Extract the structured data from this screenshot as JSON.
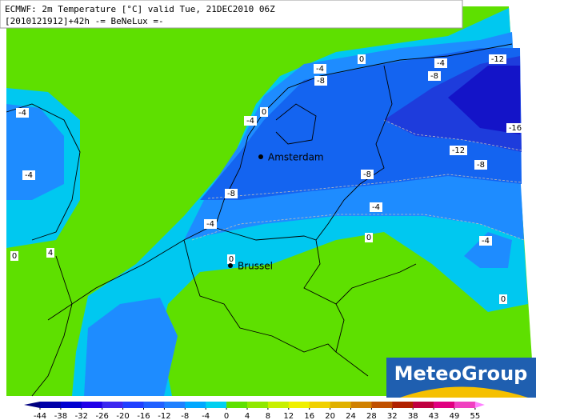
{
  "header": {
    "line1": "ECMWF: 2m Temperature [°C] valid Tue, 21DEC2010 06Z",
    "line2": "[2010121912]+42h -= BeNeLux =-"
  },
  "map": {
    "contour_labels": [
      -4,
      0,
      -8,
      -4,
      -8,
      -12,
      0,
      -4,
      -4,
      -16,
      -12,
      -8,
      -4,
      -8,
      -8,
      -4,
      -4,
      0,
      -4,
      4,
      0,
      0,
      0
    ],
    "cities": [
      {
        "name": "Amsterdam"
      },
      {
        "name": "Brussel"
      }
    ]
  },
  "legend": {
    "ticks": [
      -44,
      -38,
      -32,
      -26,
      -20,
      -16,
      -12,
      -8,
      -4,
      0,
      4,
      8,
      12,
      16,
      20,
      24,
      28,
      32,
      38,
      43,
      49,
      55
    ],
    "colors": [
      "#00007f",
      "#0000a8",
      "#0000d0",
      "#2000e8",
      "#3c28f0",
      "#2040ff",
      "#2060ff",
      "#1e80ff",
      "#00a8ff",
      "#00d0f0",
      "#5ee000",
      "#90e800",
      "#c8f000",
      "#f0f000",
      "#f0d000",
      "#e0b000",
      "#d08000",
      "#c05000",
      "#b02000",
      "#c00040",
      "#e00080",
      "#f040c0",
      "#ff80ff"
    ]
  },
  "logo": {
    "text": "MeteoGroup"
  }
}
